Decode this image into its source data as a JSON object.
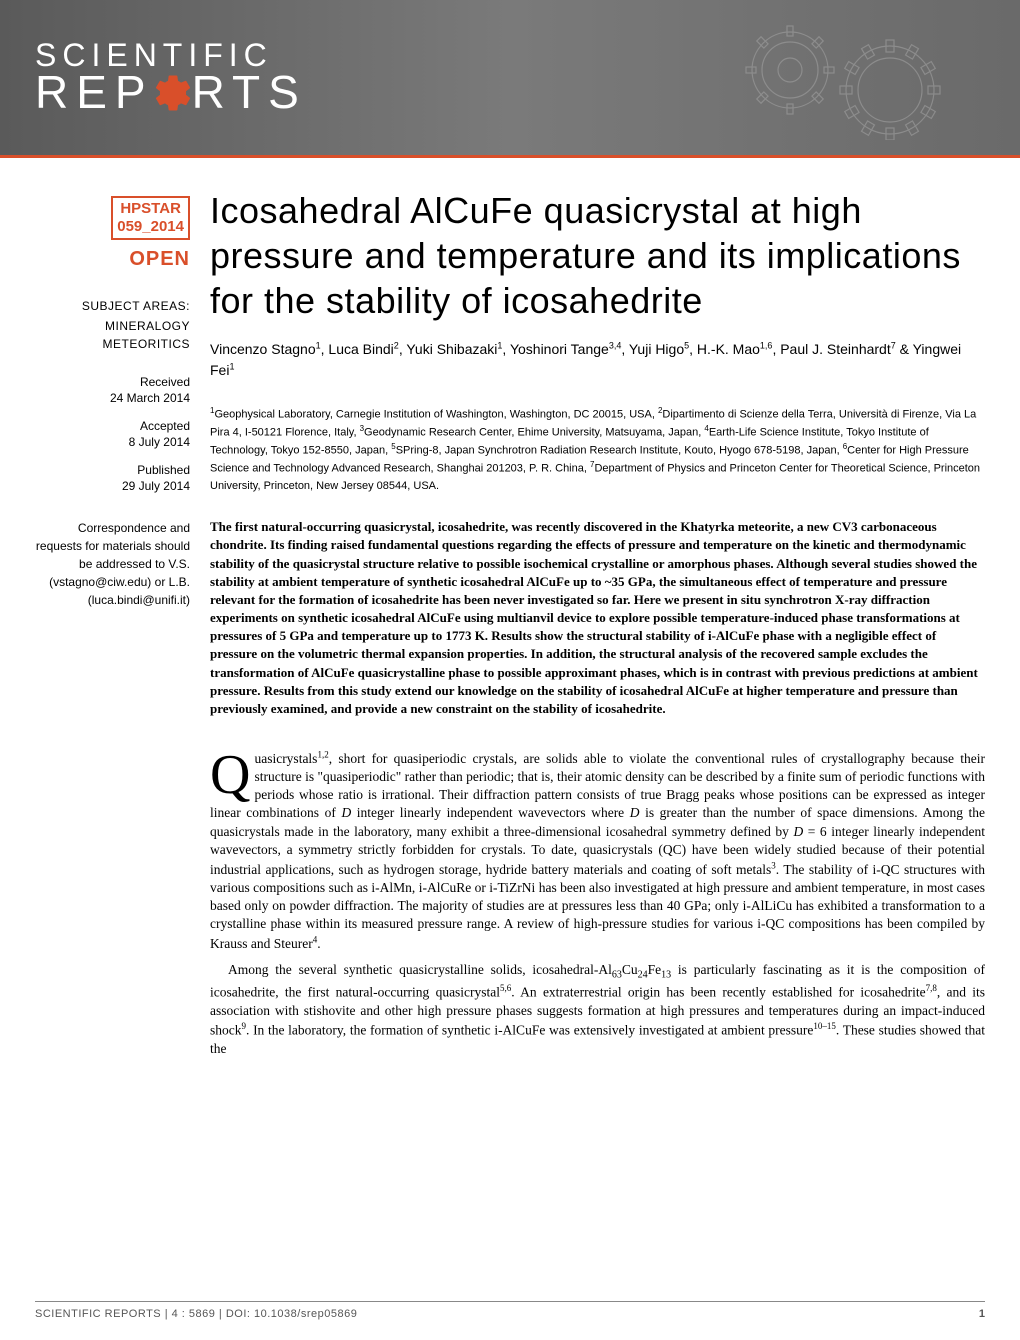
{
  "journal": {
    "logo_line1": "SCIENTIFIC",
    "logo_line2_a": "REP",
    "logo_line2_b": "RTS"
  },
  "badge": {
    "hpstar_line1": "HPSTAR",
    "hpstar_line2": "059_2014",
    "open": "OPEN"
  },
  "sidebar": {
    "subject_label": "SUBJECT AREAS:",
    "subjects": [
      "MINERALOGY",
      "METEORITICS"
    ],
    "received_label": "Received",
    "received_date": "24 March 2014",
    "accepted_label": "Accepted",
    "accepted_date": "8 July 2014",
    "published_label": "Published",
    "published_date": "29 July 2014",
    "correspondence": "Correspondence and requests for materials should be addressed to V.S. (vstagno@ciw.edu) or L.B. (luca.bindi@unifi.it)"
  },
  "article": {
    "title": "Icosahedral AlCuFe quasicrystal at high pressure and temperature and its implications for the stability of icosahedrite",
    "authors_html": "Vincenzo Stagno<sup>1</sup>, Luca Bindi<sup>2</sup>, Yuki Shibazaki<sup>1</sup>, Yoshinori Tange<sup>3,4</sup>, Yuji Higo<sup>5</sup>, H.-K. Mao<sup>1,6</sup>, Paul J. Steinhardt<sup>7</sup> & Yingwei Fei<sup>1</sup>",
    "affiliations_html": "<sup>1</sup>Geophysical Laboratory, Carnegie Institution of Washington, Washington, DC 20015, USA, <sup>2</sup>Dipartimento di Scienze della Terra, Università di Firenze, Via La Pira 4, I-50121 Florence, Italy, <sup>3</sup>Geodynamic Research Center, Ehime University, Matsuyama, Japan, <sup>4</sup>Earth-Life Science Institute, Tokyo Institute of Technology, Tokyo 152-8550, Japan, <sup>5</sup>SPring-8, Japan Synchrotron Radiation Research Institute, Kouto, Hyogo 678-5198, Japan, <sup>6</sup>Center for High Pressure Science and Technology Advanced Research, Shanghai 201203, P. R. China, <sup>7</sup>Department of Physics and Princeton Center for Theoretical Science, Princeton University, Princeton, New Jersey 08544, USA.",
    "abstract": "The first natural-occurring quasicrystal, icosahedrite, was recently discovered in the Khatyrka meteorite, a new CV3 carbonaceous chondrite. Its finding raised fundamental questions regarding the effects of pressure and temperature on the kinetic and thermodynamic stability of the quasicrystal structure relative to possible isochemical crystalline or amorphous phases. Although several studies showed the stability at ambient temperature of synthetic icosahedral AlCuFe up to ~35 GPa, the simultaneous effect of temperature and pressure relevant for the formation of icosahedrite has been never investigated so far. Here we present in situ synchrotron X-ray diffraction experiments on synthetic icosahedral AlCuFe using multianvil device to explore possible temperature-induced phase transformations at pressures of 5 GPa and temperature up to 1773 K. Results show the structural stability of i-AlCuFe phase with a negligible effect of pressure on the volumetric thermal expansion properties. In addition, the structural analysis of the recovered sample excludes the transformation of AlCuFe quasicrystalline phase to possible approximant phases, which is in contrast with previous predictions at ambient pressure. Results from this study extend our knowledge on the stability of icosahedral AlCuFe at higher temperature and pressure than previously examined, and provide a new constraint on the stability of icosahedrite.",
    "para1_html": "uasicrystals<sup>1,2</sup>, short for quasiperiodic crystals, are solids able to violate the conventional rules of crystallography because their structure is \"quasiperiodic\" rather than periodic; that is, their atomic density can be described by a finite sum of periodic functions with periods whose ratio is irrational. Their diffraction pattern consists of true Bragg peaks whose positions can be expressed as integer linear combinations of <i>D</i> integer linearly independent wavevectors where <i>D</i> is greater than the number of space dimensions. Among the quasicrystals made in the laboratory, many exhibit a three-dimensional icosahedral symmetry defined by <i>D</i> = 6 integer linearly independent wavevectors, a symmetry strictly forbidden for crystals. To date, quasicrystals (QC) have been widely studied because of their potential industrial applications, such as hydrogen storage, hydride battery materials and coating of soft metals<sup>3</sup>. The stability of i-QC structures with various compositions such as i-AlMn, i-AlCuRe or i-TiZrNi has been also investigated at high pressure and ambient temperature, in most cases based only on powder diffraction. The majority of studies are at pressures less than 40 GPa; only i-AlLiCu has exhibited a transformation to a crystalline phase within its measured pressure range. A review of high-pressure studies for various i-QC compositions has been compiled by Krauss and Steurer<sup>4</sup>.",
    "para2_html": "Among the several synthetic quasicrystalline solids, icosahedral-Al<sub>63</sub>Cu<sub>24</sub>Fe<sub>13</sub> is particularly fascinating as it is the composition of icosahedrite, the first natural-occurring quasicrystal<sup>5,6</sup>. An extraterrestrial origin has been recently established for icosahedrite<sup>7,8</sup>, and its association with stishovite and other high pressure phases suggests formation at high pressures and temperatures during an impact-induced shock<sup>9</sup>. In the laboratory, the formation of synthetic i-AlCuFe was extensively investigated at ambient pressure<sup>10–15</sup>. These studies showed that the"
  },
  "footer": {
    "citation": "SCIENTIFIC REPORTS | 4 : 5869 | DOI: 10.1038/srep05869",
    "page": "1"
  },
  "colors": {
    "accent": "#d94f2a",
    "banner_bg": "#6a6a6a",
    "text": "#000000",
    "footer_text": "#555555"
  }
}
